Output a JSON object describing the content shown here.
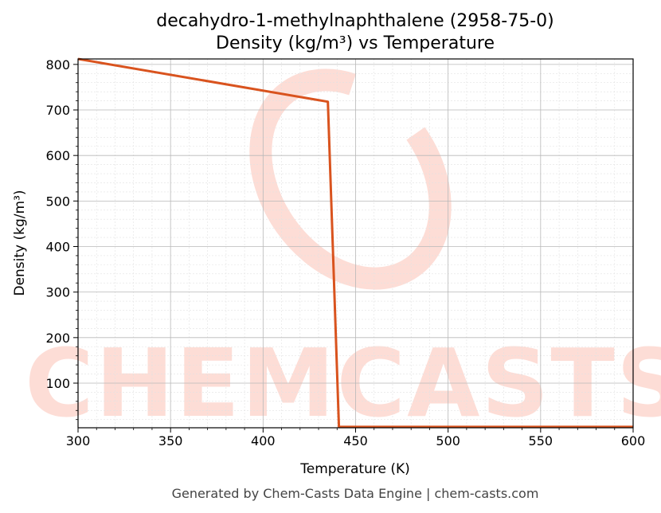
{
  "chart_data": {
    "type": "line",
    "title": "decahydro-1-methylnaphthalene (2958-75-0)",
    "subtitle": "Density (kg/m³) vs Temperature",
    "xlabel": "Temperature (K)",
    "ylabel": "Density (kg/m³)",
    "xlim": [
      300,
      600
    ],
    "ylim": [
      2,
      812
    ],
    "xticks": [
      300,
      350,
      400,
      450,
      500,
      550,
      600
    ],
    "yticks": [
      100,
      200,
      300,
      400,
      500,
      600,
      700,
      800
    ],
    "grid": true,
    "series": [
      {
        "color": "#d9531e",
        "x": [
          300,
          435,
          441,
          450,
          500,
          550,
          600
        ],
        "y": [
          812,
          718,
          4,
          4,
          4,
          4,
          4
        ]
      }
    ]
  },
  "watermark": {
    "text": "CHEMCASTS",
    "color": "#fdddd6"
  },
  "footer": {
    "text": "Generated by Chem-Casts Data Engine | chem-casts.com"
  }
}
